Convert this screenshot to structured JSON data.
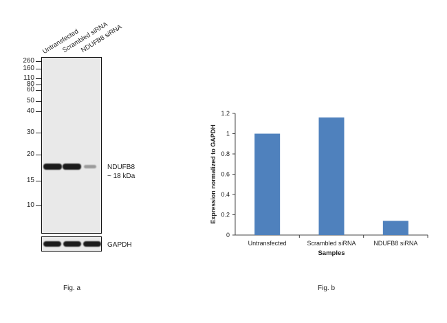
{
  "panel_a": {
    "lanes": [
      "Untransfected",
      "Scrambled siRNA",
      "NDUFB8 siRNA"
    ],
    "mw_markers": [
      "260",
      "160",
      "110",
      "80",
      "60",
      "50",
      "40",
      "30",
      "20",
      "15",
      "10"
    ],
    "target_name": "NDUFB8",
    "target_size": "~ 18 kDa",
    "loading_control": "GAPDH",
    "caption": "Fig. a"
  },
  "panel_b": {
    "caption": "Fig. b"
  },
  "chart_data": {
    "type": "bar",
    "categories": [
      "Untransfected",
      "Scrambled siRNA",
      "NDUFB8 siRNA"
    ],
    "values": [
      1.0,
      1.16,
      0.14
    ],
    "xlabel": "Samples",
    "ylabel": "Expression normalized to GAPDH",
    "ylim": [
      0,
      1.2
    ],
    "yticks": [
      "0",
      "0.2",
      "0.4",
      "0.6",
      "0.8",
      "1",
      "1.2"
    ],
    "bar_color": "#4f81bd",
    "grid": false,
    "legend": "none"
  }
}
